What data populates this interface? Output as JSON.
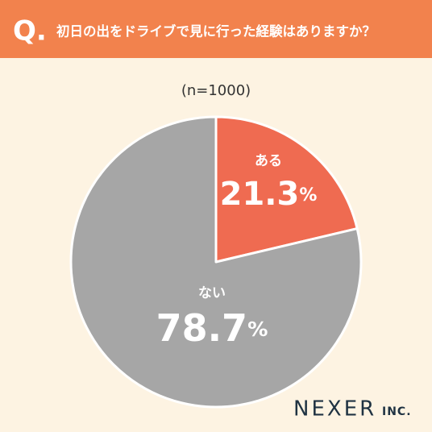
{
  "header": {
    "marker": "Q."
  },
  "chart_data": {
    "type": "pie",
    "title": "初日の出をドライブで見に行った経験はありますか？",
    "subtitle": "(n=1000)",
    "categories": [
      "ある",
      "ない"
    ],
    "values": [
      21.3,
      78.7
    ],
    "value_labels": [
      "21.3%",
      "78.7%"
    ],
    "colors": [
      "#ef6b51",
      "#a6a6a6"
    ]
  },
  "brand": {
    "name": "NEXER",
    "suffix": "INC."
  }
}
